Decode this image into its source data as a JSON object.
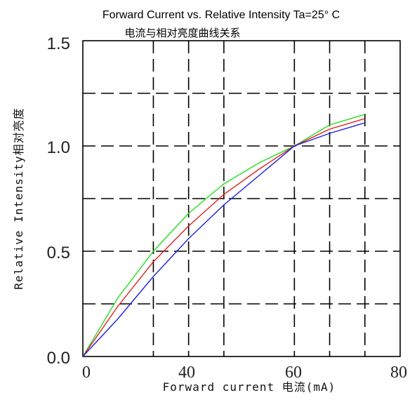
{
  "chart_data": {
    "type": "line",
    "title": "Forward Current vs. Relative Intensity  Ta=25° C",
    "subtitle": "电流与相对亮度曲线关系",
    "xlabel": "Forward current 电流(mA)",
    "ylabel": "Relative Intensity相对亮度",
    "xlim": [
      0,
      90
    ],
    "ylim": [
      0,
      1.5
    ],
    "x_ticks": [
      "0",
      "40",
      "60",
      "80"
    ],
    "y_ticks": [
      "0.0",
      "0.5",
      "1.0",
      "1.5"
    ],
    "grid": true,
    "series": [
      {
        "color": "#22e022",
        "x": [
          0,
          10,
          20,
          30,
          40,
          50,
          60,
          70,
          80
        ],
        "y": [
          0,
          0.28,
          0.5,
          0.68,
          0.82,
          0.92,
          1.0,
          1.1,
          1.15
        ]
      },
      {
        "color": "#e02020",
        "x": [
          0,
          10,
          20,
          30,
          40,
          50,
          60,
          70,
          80
        ],
        "y": [
          0,
          0.24,
          0.45,
          0.62,
          0.77,
          0.89,
          1.0,
          1.08,
          1.13
        ]
      },
      {
        "color": "#2020e0",
        "x": [
          0,
          10,
          20,
          30,
          40,
          50,
          60,
          70,
          80
        ],
        "y": [
          0,
          0.18,
          0.38,
          0.56,
          0.72,
          0.86,
          1.0,
          1.06,
          1.11
        ]
      }
    ]
  }
}
